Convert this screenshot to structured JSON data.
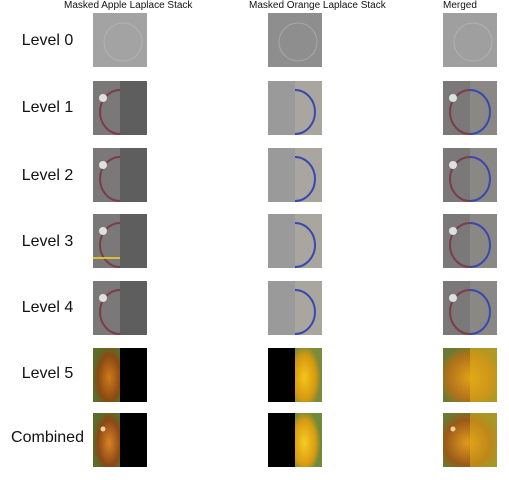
{
  "headers": {
    "apple": "Masked Apple Laplace Stack",
    "orange": "Masked Orange Laplace Stack",
    "merged": "Merged"
  },
  "rows": [
    {
      "label": "Level 0"
    },
    {
      "label": "Level 1"
    },
    {
      "label": "Level 2"
    },
    {
      "label": "Level 3"
    },
    {
      "label": "Level 4"
    },
    {
      "label": "Level 5"
    },
    {
      "label": "Combined"
    }
  ]
}
